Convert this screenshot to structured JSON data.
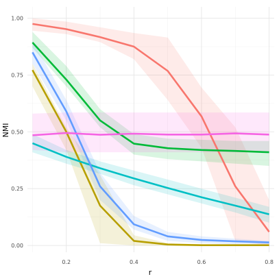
{
  "chart_data": {
    "type": "line",
    "xlabel": "r",
    "ylabel": "NMI",
    "xlim": [
      0.085,
      0.815
    ],
    "ylim": [
      -0.03,
      1.05
    ],
    "x_ticks": [
      0.2,
      0.4,
      0.6,
      0.8
    ],
    "x_tick_labels": [
      "0.2",
      "0.4",
      "0.6",
      "0.8"
    ],
    "y_ticks": [
      0.0,
      0.25,
      0.5,
      0.75,
      1.0
    ],
    "y_tick_labels": [
      "0.00",
      "0.25",
      "0.50",
      "0.75",
      "1.00"
    ],
    "grid": true,
    "legend": "none",
    "x": [
      0.1,
      0.2,
      0.3,
      0.4,
      0.5,
      0.6,
      0.7,
      0.8
    ],
    "series": [
      {
        "color": "#F8766D",
        "values": [
          0.975,
          0.952,
          0.917,
          0.875,
          0.768,
          0.568,
          0.26,
          0.06
        ],
        "lower": [
          0.945,
          0.93,
          0.895,
          0.82,
          0.64,
          0.43,
          0.02,
          0.0
        ],
        "upper": [
          1.0,
          0.985,
          0.96,
          0.935,
          0.915,
          0.695,
          0.52,
          0.2
        ]
      },
      {
        "color": "#B79F00",
        "values": [
          0.772,
          0.5,
          0.175,
          0.02,
          0.004,
          0.001,
          0.001,
          0.001
        ],
        "lower": [
          0.7,
          0.42,
          0.01,
          0.0,
          0.0,
          0.0,
          0.0,
          0.0
        ],
        "upper": [
          0.8,
          0.52,
          0.31,
          0.045,
          0.01,
          0.005,
          0.005,
          0.005
        ]
      },
      {
        "color": "#00BA38",
        "values": [
          0.893,
          0.73,
          0.55,
          0.448,
          0.428,
          0.42,
          0.416,
          0.41
        ],
        "lower": [
          0.87,
          0.7,
          0.52,
          0.4,
          0.38,
          0.37,
          0.36,
          0.35
        ],
        "upper": [
          0.94,
          0.79,
          0.6,
          0.49,
          0.47,
          0.465,
          0.46,
          0.46
        ]
      },
      {
        "color": "#00BFC4",
        "values": [
          0.45,
          0.39,
          0.34,
          0.295,
          0.253,
          0.212,
          0.175,
          0.137
        ],
        "lower": [
          0.41,
          0.36,
          0.315,
          0.265,
          0.225,
          0.185,
          0.145,
          0.1
        ],
        "upper": [
          0.49,
          0.42,
          0.37,
          0.33,
          0.29,
          0.25,
          0.21,
          0.17
        ]
      },
      {
        "color": "#619CFF",
        "values": [
          0.85,
          0.59,
          0.26,
          0.093,
          0.04,
          0.024,
          0.018,
          0.013
        ],
        "lower": [
          0.8,
          0.55,
          0.2,
          0.07,
          0.02,
          0.01,
          0.005,
          0.005
        ],
        "upper": [
          0.9,
          0.64,
          0.32,
          0.13,
          0.06,
          0.04,
          0.03,
          0.02
        ]
      },
      {
        "color": "#F564E3",
        "values": [
          0.485,
          0.495,
          0.487,
          0.492,
          0.488,
          0.488,
          0.493,
          0.488
        ],
        "lower": [
          0.42,
          0.41,
          0.41,
          0.41,
          0.41,
          0.41,
          0.41,
          0.41
        ],
        "upper": [
          0.58,
          0.585,
          0.585,
          0.585,
          0.585,
          0.585,
          0.585,
          0.585
        ]
      }
    ]
  }
}
